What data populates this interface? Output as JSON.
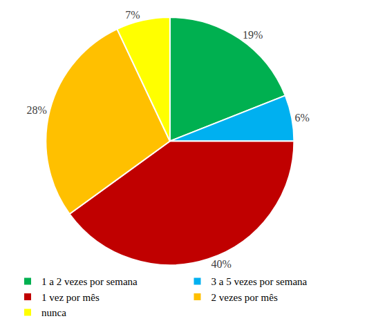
{
  "chart_data": {
    "type": "pie",
    "categories": [
      "1 a 2 vezes por semana",
      "3 a 5 vezes por semana",
      "1 vez por mês",
      "2 vezes por mês",
      "nunca"
    ],
    "values": [
      19,
      6,
      40,
      28,
      7
    ],
    "value_labels": [
      "19%",
      "6%",
      "40%",
      "28%",
      "7%"
    ],
    "colors": [
      "#00b050",
      "#00b0f0",
      "#c00000",
      "#ffc000",
      "#ffff00"
    ],
    "data_labels": true,
    "legend": "bottom"
  }
}
